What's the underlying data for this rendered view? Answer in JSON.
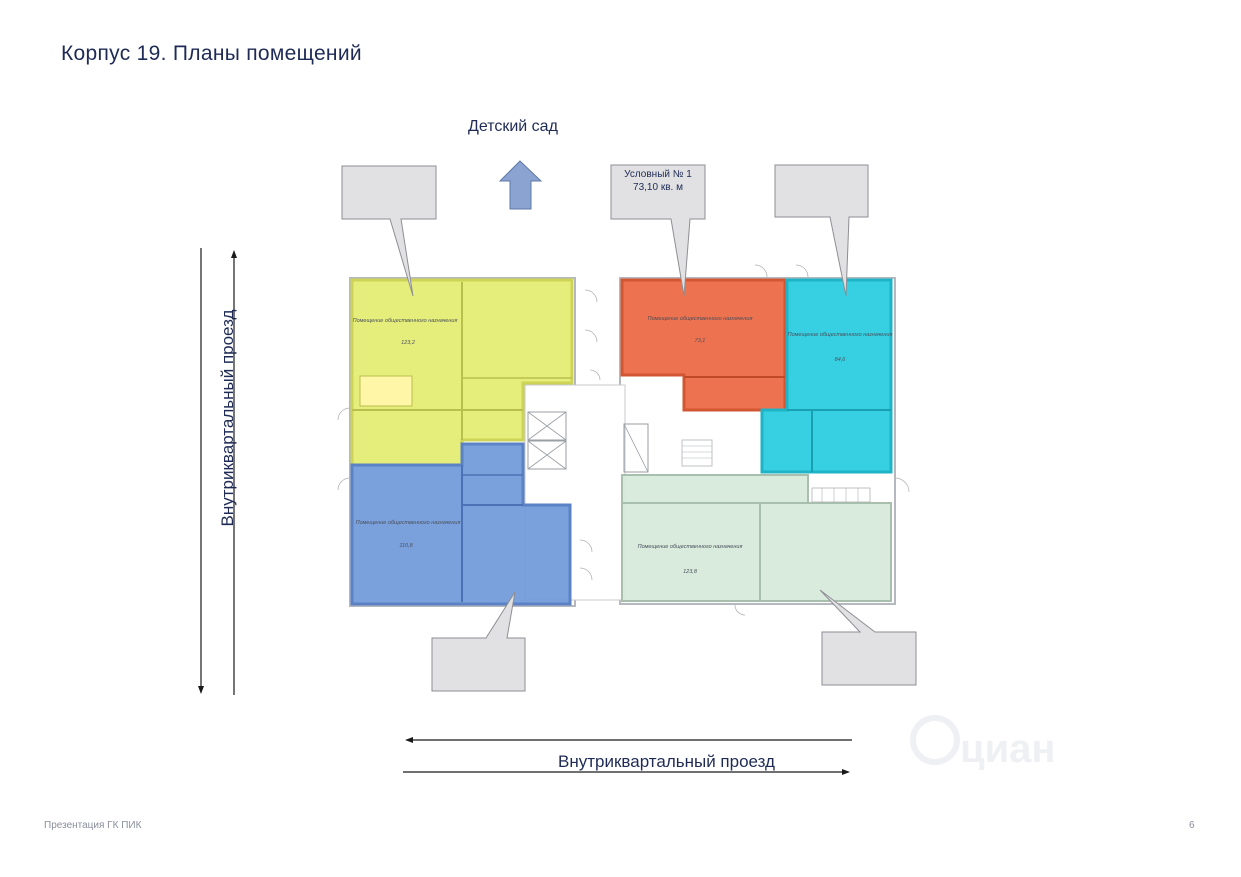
{
  "page": {
    "title": "Корпус 19. Планы помещений",
    "number": "6",
    "footer": "Презентация ГК ПИК"
  },
  "compass": {
    "north_label": "Детский сад"
  },
  "roads": {
    "left_label": "Внутриквартальный проезд",
    "bottom_label": "Внутриквартальный проезд"
  },
  "rooms": [
    {
      "id": "yellow",
      "label": "Помещение общественного назначения",
      "area": "123,2",
      "color": "#e3ec6d"
    },
    {
      "id": "blue",
      "label": "Помещение общественного назначения",
      "area": "110,8",
      "color": "#6f99d8"
    },
    {
      "id": "orange",
      "label": "Помещение общественного назначения",
      "area": "73,1",
      "color": "#ec6a47"
    },
    {
      "id": "cyan",
      "label": "Помещение общественного назначения",
      "area": "84,6",
      "color": "#2ccde0"
    },
    {
      "id": "green",
      "label": "Помещение общественного назначения",
      "area": "123,8",
      "color": "#d6eadb"
    }
  ],
  "callouts": {
    "active": {
      "line1": "Условный № 1",
      "line2": "73,10 кв. м"
    }
  },
  "watermark": {
    "text": "циан"
  },
  "colors": {
    "text": "#1f2b55",
    "callout_fill": "#e1e1e3",
    "callout_stroke": "#8e8e94",
    "wall": "#b5b8be",
    "arrow": "#8aa3d1"
  }
}
